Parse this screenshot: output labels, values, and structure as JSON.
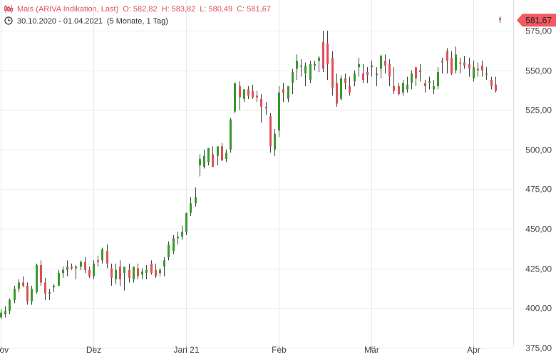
{
  "header": {
    "instrument": "Mais (ARIVA Indikation, Last)",
    "open": "O: 582,82",
    "high": "H: 583,82",
    "low": "L: 580,49",
    "close": "C: 581,67",
    "range": "30.10.2020 - 01.04.2021",
    "period": "(5 Monate, 1 Tag)",
    "chart_icon": "candlestick-icon",
    "clock_icon": "clock-icon"
  },
  "last_price": "581,67",
  "colors": {
    "up": "#3a9a2e",
    "down": "#e0505a",
    "grid": "#e9e9e9",
    "tag": "#f05a60"
  },
  "chart_data": {
    "type": "candlestick",
    "y_axis_side": "right",
    "ylim": [
      375,
      582
    ],
    "y_ticks": [
      "375,00",
      "400,00",
      "425,00",
      "450,00",
      "475,00",
      "500,00",
      "525,00",
      "550,00",
      "575,00"
    ],
    "y_tick_values": [
      375,
      400,
      425,
      450,
      475,
      500,
      525,
      550,
      575
    ],
    "x_ticks": [
      {
        "label": "Nov",
        "index": 0
      },
      {
        "label": "Dez",
        "index": 21
      },
      {
        "label": "Jan 21",
        "index": 42
      },
      {
        "label": "Feb",
        "index": 63
      },
      {
        "label": "Mär",
        "index": 84
      },
      {
        "label": "Apr",
        "index": 107
      }
    ],
    "ohlc": [
      [
        394,
        399,
        393,
        397
      ],
      [
        396,
        401,
        394,
        398
      ],
      [
        398,
        406,
        396,
        405
      ],
      [
        405,
        414,
        403,
        412
      ],
      [
        412,
        418,
        410,
        416
      ],
      [
        416,
        420,
        413,
        414
      ],
      [
        414,
        416,
        402,
        404
      ],
      [
        404,
        414,
        402,
        412
      ],
      [
        410,
        428,
        409,
        427
      ],
      [
        427,
        430,
        414,
        416
      ],
      [
        416,
        419,
        405,
        409
      ],
      [
        409,
        412,
        405,
        410
      ],
      [
        413,
        415,
        410,
        414
      ],
      [
        414,
        424,
        414,
        422
      ],
      [
        422,
        426,
        419,
        424
      ],
      [
        424,
        430,
        420,
        426
      ],
      [
        426,
        428,
        424,
        425
      ],
      [
        425,
        427,
        418,
        426
      ],
      [
        426,
        430,
        424,
        429
      ],
      [
        429,
        432,
        422,
        424
      ],
      [
        424,
        426,
        419,
        420
      ],
      [
        420,
        430,
        418,
        428
      ],
      [
        430,
        433,
        426,
        429
      ],
      [
        430,
        438,
        428,
        437
      ],
      [
        436,
        440,
        425,
        428
      ],
      [
        425,
        428,
        414,
        419
      ],
      [
        418,
        428,
        415,
        424
      ],
      [
        426,
        430,
        414,
        418
      ],
      [
        422,
        426,
        411,
        426
      ],
      [
        424,
        428,
        416,
        419
      ],
      [
        418,
        426,
        416,
        426
      ],
      [
        425,
        428,
        418,
        420
      ],
      [
        421,
        425,
        418,
        423
      ],
      [
        422,
        427,
        418,
        424
      ],
      [
        428,
        430,
        421,
        422
      ],
      [
        424,
        428,
        419,
        420
      ],
      [
        422,
        425,
        420,
        424
      ],
      [
        426,
        432,
        420,
        430
      ],
      [
        432,
        442,
        430,
        440
      ],
      [
        436,
        446,
        434,
        444
      ],
      [
        444,
        448,
        440,
        445
      ],
      [
        445,
        452,
        443,
        448
      ],
      [
        448,
        460,
        446,
        460
      ],
      [
        460,
        470,
        458,
        466
      ],
      [
        466,
        476,
        464,
        470
      ],
      [
        490,
        497,
        483,
        494
      ],
      [
        489,
        500,
        488,
        496
      ],
      [
        492,
        500,
        490,
        501
      ],
      [
        497,
        502,
        489,
        489
      ],
      [
        496,
        502,
        490,
        502
      ],
      [
        502,
        504,
        493,
        493
      ],
      [
        494,
        500,
        492,
        498
      ],
      [
        500,
        520,
        498,
        519
      ],
      [
        524,
        542,
        523,
        542
      ],
      [
        540,
        543,
        525,
        533
      ],
      [
        532,
        538,
        530,
        538
      ],
      [
        538,
        540,
        532,
        534
      ],
      [
        537,
        541,
        532,
        533
      ],
      [
        534,
        537,
        530,
        533
      ],
      [
        532,
        535,
        517,
        527
      ],
      [
        527,
        530,
        522,
        526
      ],
      [
        521,
        523,
        498,
        502
      ],
      [
        500,
        513,
        496,
        510
      ],
      [
        512,
        540,
        508,
        536
      ],
      [
        538,
        542,
        530,
        536
      ],
      [
        532,
        538,
        530,
        540
      ],
      [
        542,
        551,
        535,
        549
      ],
      [
        551,
        560,
        544,
        556
      ],
      [
        553,
        557,
        546,
        553
      ],
      [
        548,
        555,
        540,
        553
      ],
      [
        544,
        556,
        542,
        554
      ],
      [
        553,
        556,
        550,
        554
      ],
      [
        556,
        559,
        549,
        558
      ],
      [
        568,
        575,
        549,
        551
      ],
      [
        567,
        575,
        544,
        554
      ],
      [
        558,
        562,
        534,
        539
      ],
      [
        542,
        548,
        527,
        529
      ],
      [
        532,
        547,
        531,
        545
      ],
      [
        545,
        548,
        538,
        542
      ],
      [
        540,
        546,
        534,
        536
      ],
      [
        543,
        550,
        540,
        548
      ],
      [
        552,
        558,
        546,
        554
      ],
      [
        548,
        554,
        542,
        544
      ],
      [
        549,
        552,
        542,
        547
      ],
      [
        552,
        556,
        546,
        553
      ],
      [
        547,
        552,
        540,
        548
      ],
      [
        551,
        560,
        545,
        559
      ],
      [
        556,
        560,
        548,
        553
      ],
      [
        554,
        557,
        540,
        546
      ],
      [
        540,
        552,
        535,
        537
      ],
      [
        540,
        542,
        534,
        535
      ],
      [
        536,
        544,
        534,
        542
      ],
      [
        538,
        546,
        536,
        541
      ],
      [
        542,
        550,
        538,
        548
      ],
      [
        552,
        552,
        540,
        545
      ],
      [
        550,
        554,
        543,
        549
      ],
      [
        542,
        544,
        536,
        540
      ],
      [
        542,
        546,
        538,
        543
      ],
      [
        538,
        544,
        535,
        540
      ],
      [
        540,
        552,
        538,
        549
      ],
      [
        556,
        558,
        548,
        555
      ],
      [
        562,
        564,
        548,
        556
      ],
      [
        558,
        562,
        547,
        548
      ],
      [
        550,
        565,
        548,
        560
      ],
      [
        555,
        558,
        548,
        555
      ],
      [
        555,
        559,
        551,
        553
      ],
      [
        554,
        558,
        546,
        551
      ],
      [
        545,
        556,
        543,
        552
      ],
      [
        551,
        555,
        546,
        550
      ],
      [
        553,
        556,
        546,
        550
      ],
      [
        548,
        552,
        544,
        548
      ],
      [
        544,
        546,
        538,
        540
      ],
      [
        541,
        546,
        536,
        537
      ],
      [
        583,
        584,
        580,
        582
      ]
    ]
  }
}
